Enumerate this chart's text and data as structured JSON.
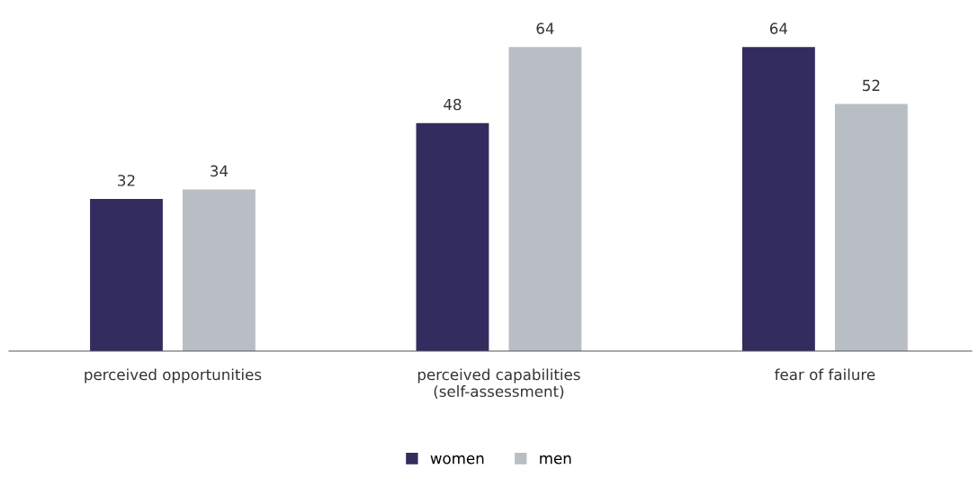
{
  "chart_data": {
    "type": "bar",
    "categories": [
      "perceived opportunities",
      "perceived capabilities\n(self-assessment)",
      "fear of failure"
    ],
    "series": [
      {
        "name": "women",
        "color": "#332c5e",
        "values": [
          32,
          48,
          64
        ]
      },
      {
        "name": "men",
        "color": "#b8bec4",
        "values": [
          34,
          64,
          52
        ]
      }
    ],
    "data_labels": true,
    "legend": "bottom",
    "grid": false
  }
}
